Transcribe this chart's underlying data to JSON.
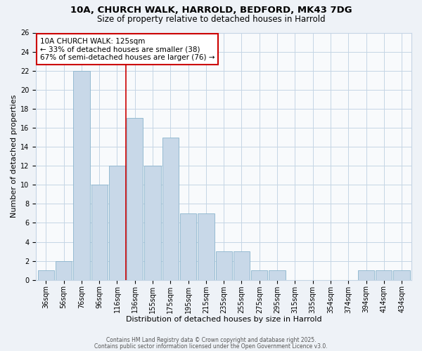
{
  "title1": "10A, CHURCH WALK, HARROLD, BEDFORD, MK43 7DG",
  "title2": "Size of property relative to detached houses in Harrold",
  "xlabel": "Distribution of detached houses by size in Harrold",
  "ylabel": "Number of detached properties",
  "bin_labels": [
    "36sqm",
    "56sqm",
    "76sqm",
    "96sqm",
    "116sqm",
    "136sqm",
    "155sqm",
    "175sqm",
    "195sqm",
    "215sqm",
    "235sqm",
    "255sqm",
    "275sqm",
    "295sqm",
    "315sqm",
    "335sqm",
    "354sqm",
    "374sqm",
    "394sqm",
    "414sqm",
    "434sqm"
  ],
  "bar_values": [
    1,
    2,
    22,
    10,
    12,
    17,
    12,
    15,
    7,
    7,
    3,
    3,
    1,
    1,
    0,
    0,
    0,
    0,
    1,
    1,
    1
  ],
  "bar_color": "#c8d8e8",
  "bar_edge_color": "#8ab4cc",
  "vline_x": 4.5,
  "vline_color": "#cc0000",
  "annotation_line1": "10A CHURCH WALK: 125sqm",
  "annotation_line2": "← 33% of detached houses are smaller (38)",
  "annotation_line3": "67% of semi-detached houses are larger (76) →",
  "annotation_box_color": "#ffffff",
  "annotation_box_edge": "#cc0000",
  "ylim": [
    0,
    26
  ],
  "yticks": [
    0,
    2,
    4,
    6,
    8,
    10,
    12,
    14,
    16,
    18,
    20,
    22,
    24,
    26
  ],
  "footer1": "Contains HM Land Registry data © Crown copyright and database right 2025.",
  "footer2": "Contains public sector information licensed under the Open Government Licence v3.0.",
  "bg_color": "#eef2f7",
  "plot_bg_color": "#f8fafc",
  "grid_color": "#c5d5e5",
  "title_fontsize": 9.5,
  "subtitle_fontsize": 8.5,
  "axis_label_fontsize": 8,
  "tick_fontsize": 7,
  "annotation_fontsize": 7.5,
  "footer_fontsize": 5.5
}
